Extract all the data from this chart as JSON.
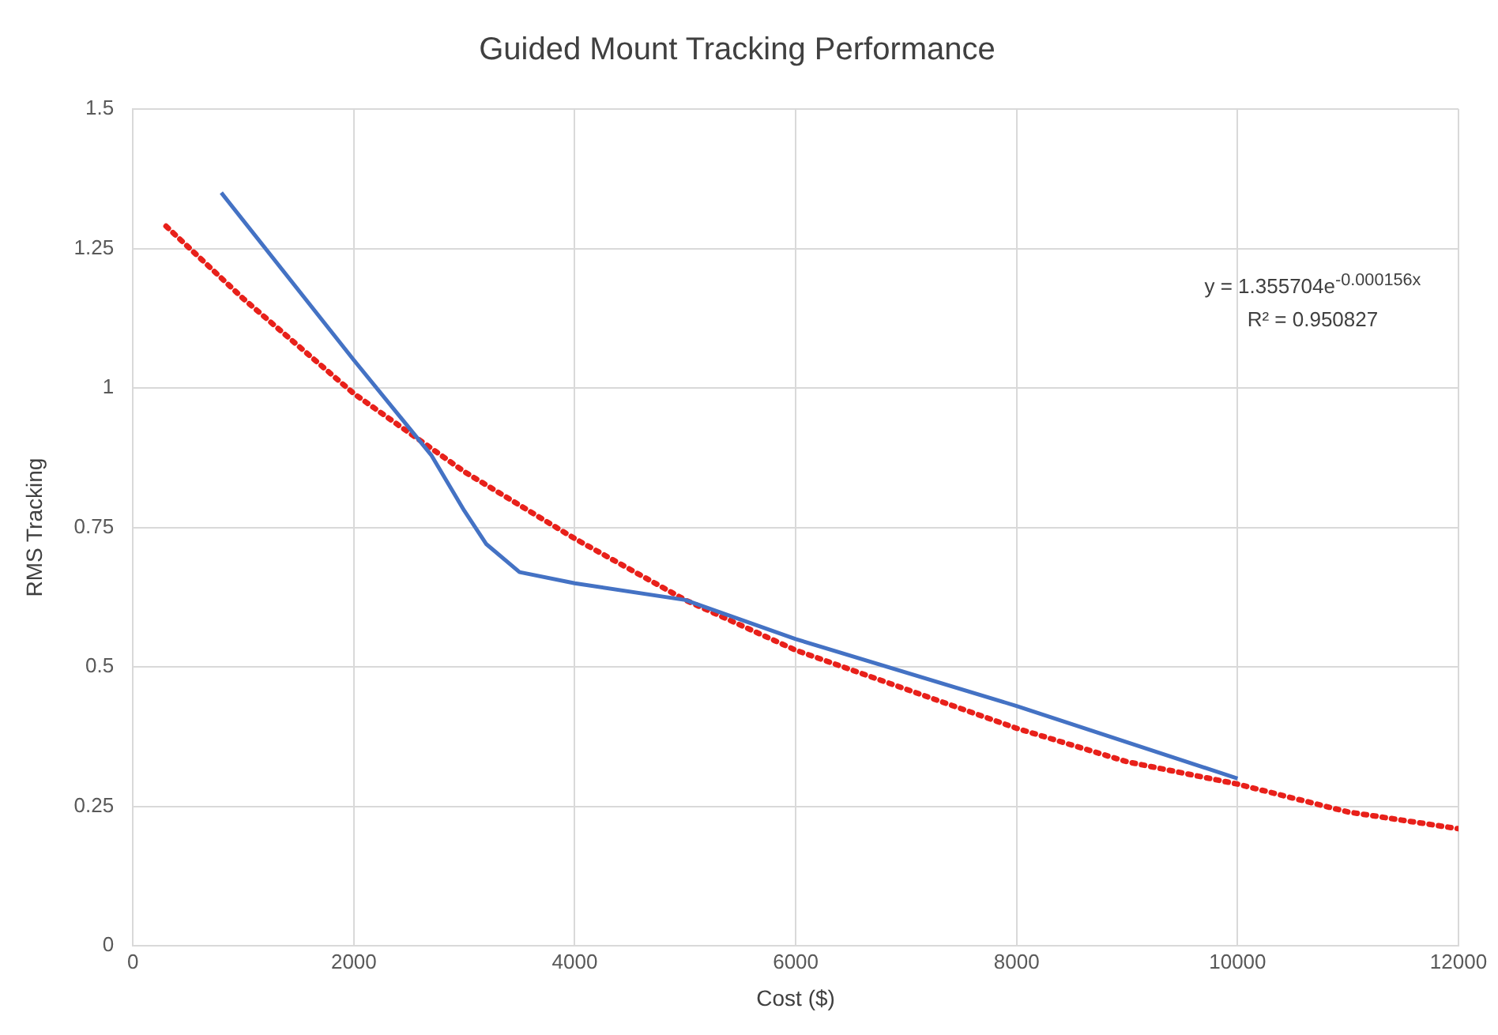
{
  "chart_data": {
    "type": "line",
    "title": "Guided Mount Tracking Performance",
    "xlabel": "Cost ($)",
    "ylabel": "RMS Tracking",
    "xlim": [
      0,
      12000
    ],
    "xticks": [
      0,
      2000,
      4000,
      6000,
      8000,
      10000,
      12000
    ],
    "ylim": [
      0,
      1.5
    ],
    "yticks": [
      0,
      0.25,
      0.5,
      0.75,
      1,
      1.25,
      1.5
    ],
    "grid": true,
    "legend": false,
    "marker": "none",
    "series": [
      {
        "color": "#4472c4",
        "line_style": "solid",
        "x": [
          800,
          2000,
          2700,
          3000,
          3200,
          3500,
          4000,
          5000,
          6000,
          8000,
          10000
        ],
        "values": [
          1.35,
          1.05,
          0.88,
          0.78,
          0.72,
          0.67,
          0.65,
          0.62,
          0.55,
          0.43,
          0.3
        ]
      },
      {
        "color": "#e8201a",
        "line_style": "dotted",
        "x": [
          300,
          1000,
          2000,
          3000,
          4000,
          5000,
          6000,
          7000,
          8000,
          9000,
          10000,
          11000,
          12000
        ],
        "values": [
          1.29,
          1.16,
          0.99,
          0.85,
          0.73,
          0.62,
          0.53,
          0.46,
          0.39,
          0.33,
          0.29,
          0.24,
          0.21
        ]
      }
    ],
    "annotations": [
      "y = 1.355704e$^{-0.000156x}$",
      "R² = 0.950827"
    ]
  }
}
